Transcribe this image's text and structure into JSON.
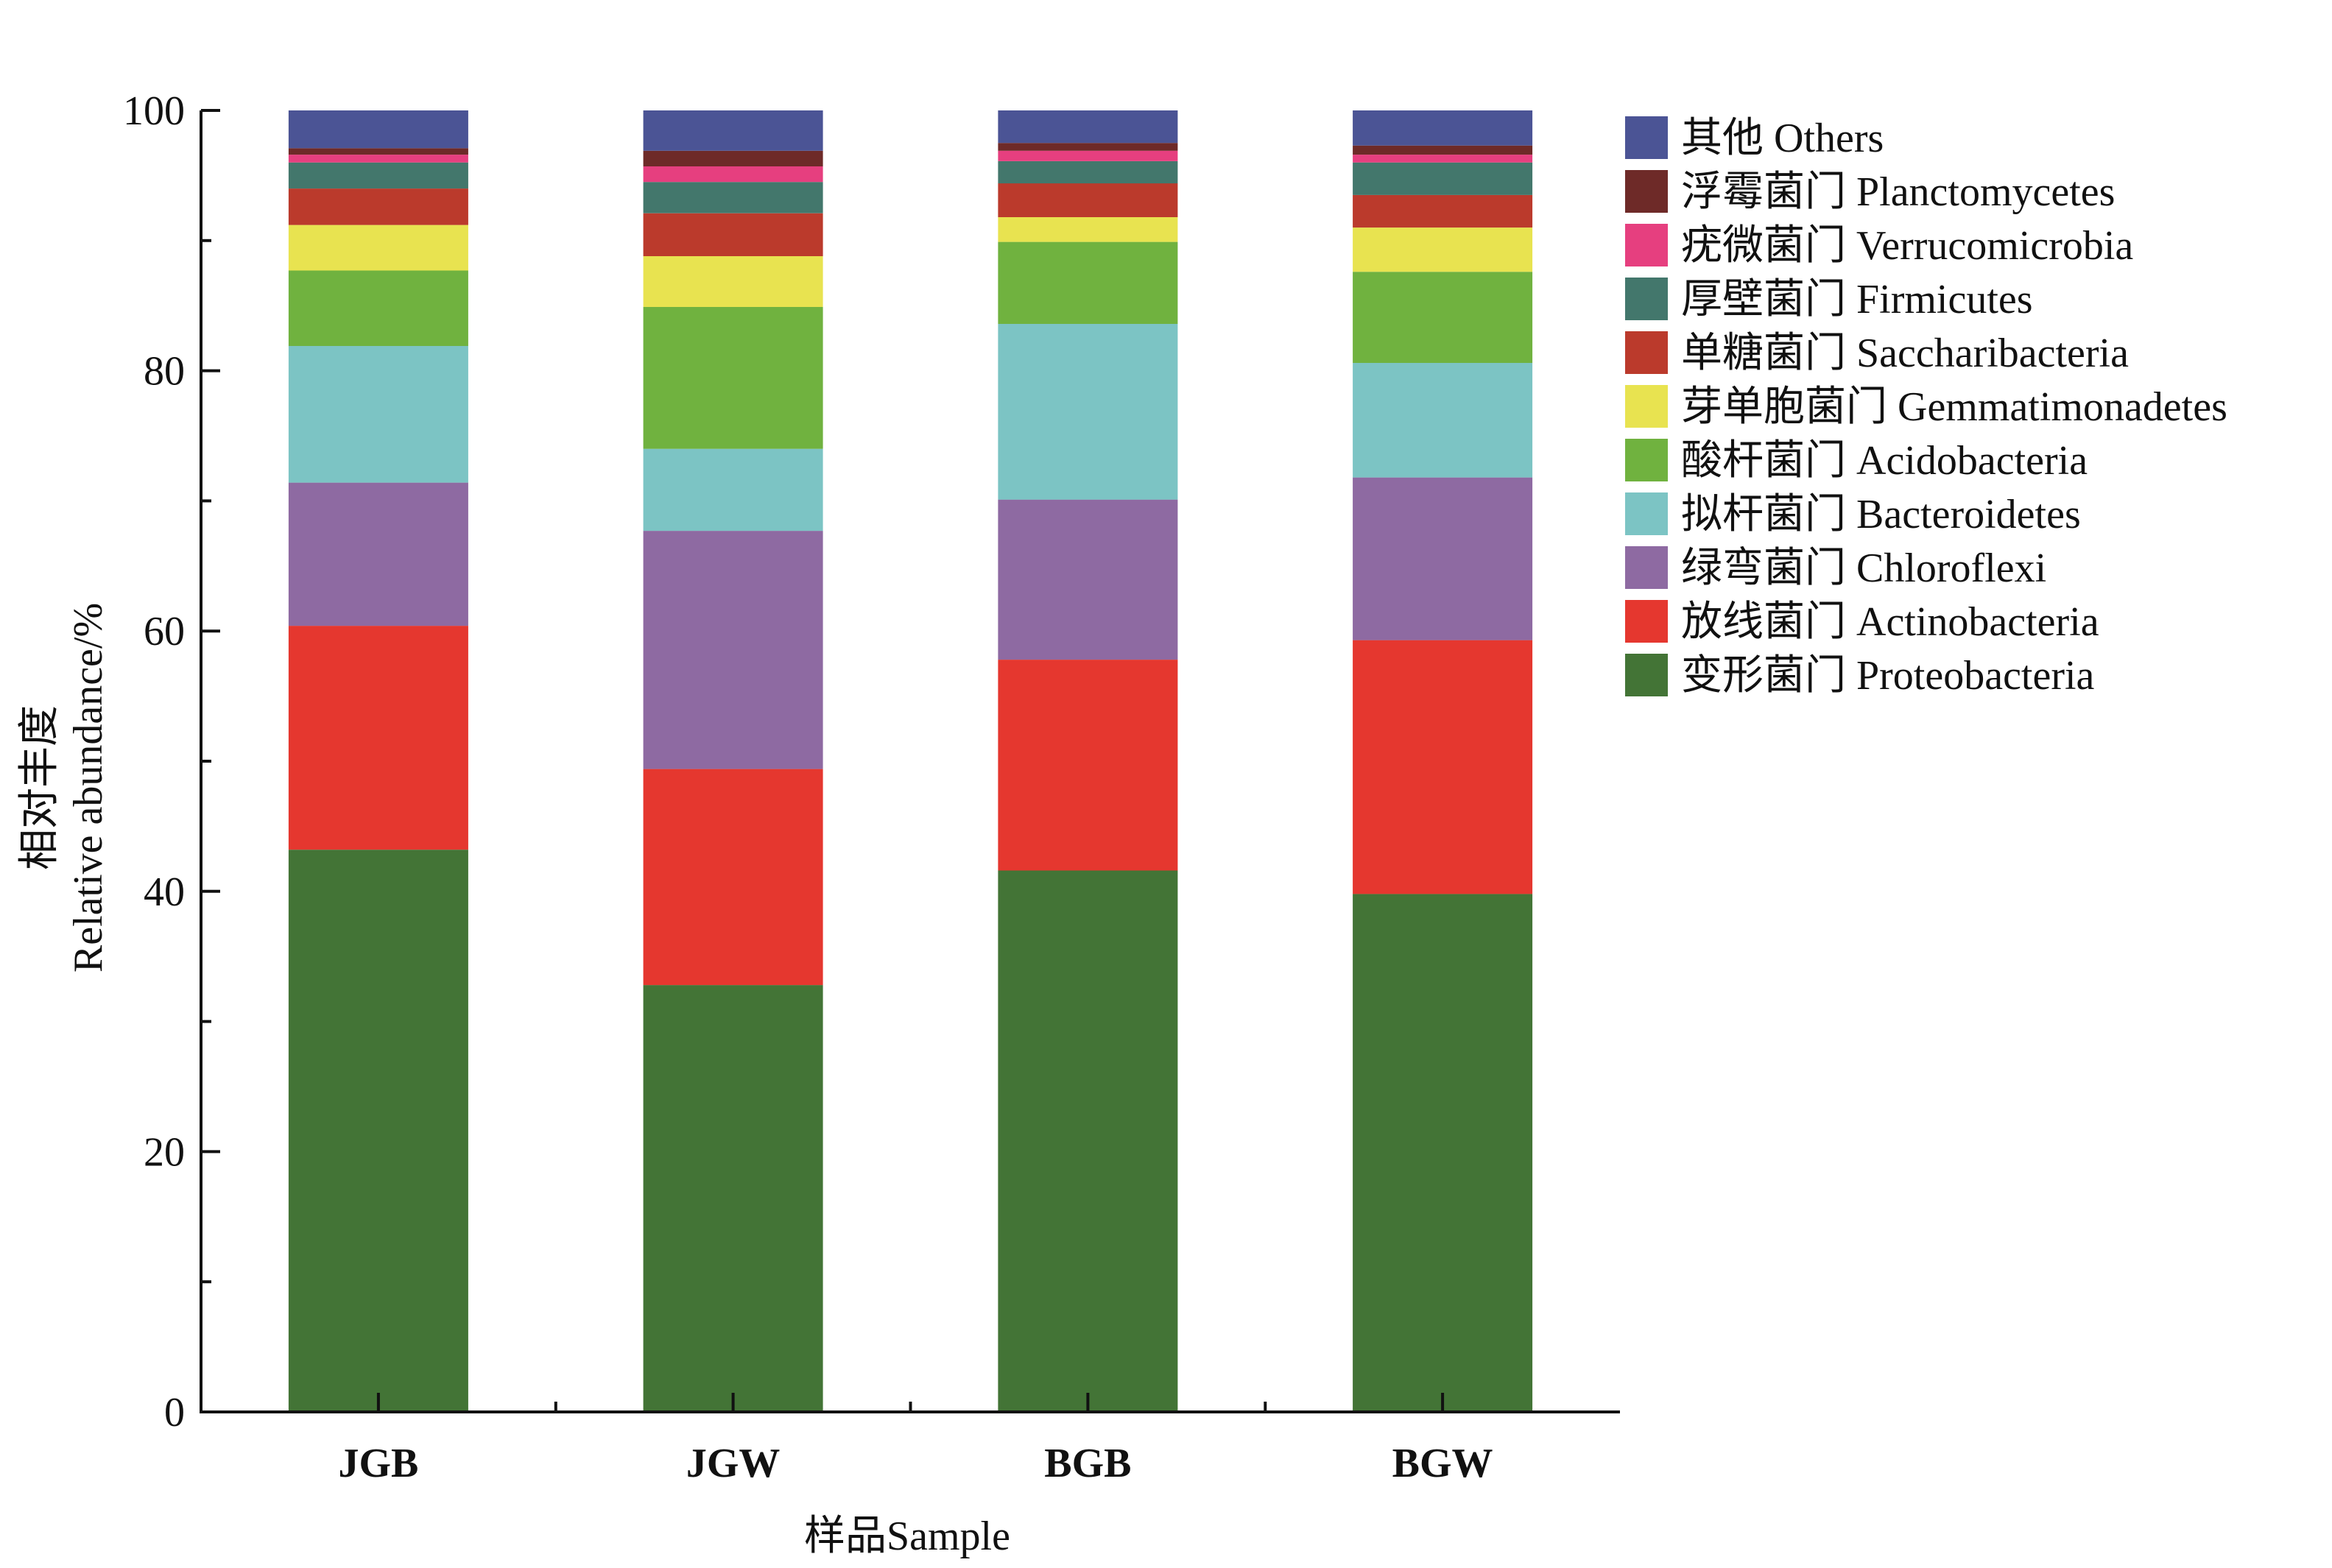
{
  "chart_data": {
    "type": "bar",
    "stacked": true,
    "title": "",
    "xlabel": "样品Sample",
    "ylabel_cn": "相对丰度",
    "ylabel_en": "Relative abundance/%",
    "ylim": [
      0,
      100
    ],
    "yticks": [
      "0",
      "20",
      "40",
      "60",
      "80",
      "100"
    ],
    "categories": [
      "JGB",
      "JGW",
      "BGB",
      "BGW"
    ],
    "legend_position": "right",
    "series": [
      {
        "name": "变形菌门 Proteobacteria",
        "color": "#437436",
        "values": [
          43.2,
          32.8,
          41.6,
          39.8
        ]
      },
      {
        "name": "放线菌门 Actinobacteria",
        "color": "#E5372F",
        "values": [
          17.2,
          16.6,
          16.2,
          19.5
        ]
      },
      {
        "name": "绿弯菌门 Chloroflexi",
        "color": "#8E6AA2",
        "values": [
          11.0,
          18.3,
          12.3,
          12.5
        ]
      },
      {
        "name": "拟杆菌门 Bacteroidetes",
        "color": "#7CC4C4",
        "values": [
          10.5,
          6.3,
          13.5,
          8.8
        ]
      },
      {
        "name": "酸杆菌门 Acidobacteria",
        "color": "#70B23F",
        "values": [
          5.8,
          10.9,
          6.3,
          7.0
        ]
      },
      {
        "name": "芽单胞菌门 Gemmatimonadetes",
        "color": "#E8E350",
        "values": [
          3.5,
          3.9,
          1.9,
          3.4
        ]
      },
      {
        "name": "单糖菌门 Saccharibacteria",
        "color": "#BB3A2C",
        "values": [
          2.8,
          3.3,
          2.6,
          2.5
        ]
      },
      {
        "name": "厚壁菌门 Firmicutes",
        "color": "#43776C",
        "values": [
          2.0,
          2.4,
          1.7,
          2.5
        ]
      },
      {
        "name": "疣微菌门 Verrucomicrobia",
        "color": "#E63F7F",
        "values": [
          0.6,
          1.2,
          0.8,
          0.6
        ]
      },
      {
        "name": "浮霉菌门 Planctomycetes",
        "color": "#6E2A28",
        "values": [
          0.5,
          1.2,
          0.6,
          0.7
        ]
      },
      {
        "name": "其他 Others",
        "color": "#4B5495",
        "values": [
          2.9,
          3.1,
          2.5,
          2.7
        ]
      }
    ]
  }
}
